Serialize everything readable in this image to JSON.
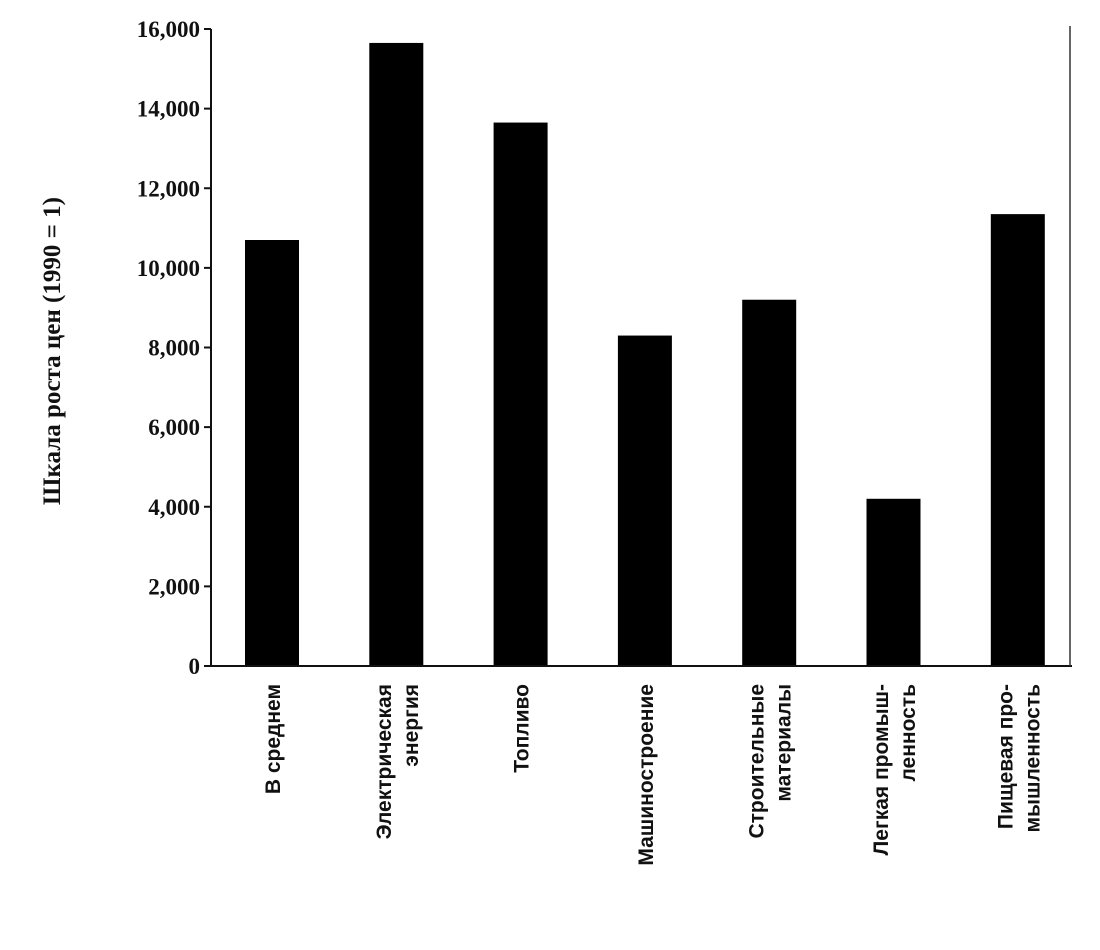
{
  "chart_data": {
    "type": "bar",
    "ylabel": "Шкала роста цен (1990 = 1)",
    "xlabel": "",
    "ylim": [
      0,
      16000
    ],
    "yticks": [
      0,
      2000,
      4000,
      6000,
      8000,
      10000,
      12000,
      14000,
      16000
    ],
    "ytick_labels": [
      "0",
      "2,000",
      "4,000",
      "6,000",
      "8,000",
      "10,000",
      "12,000",
      "14,000",
      "16,000"
    ],
    "categories": [
      {
        "lines": [
          "В среднем"
        ]
      },
      {
        "lines": [
          "Электрическая",
          "энергия"
        ]
      },
      {
        "lines": [
          "Топливо"
        ]
      },
      {
        "lines": [
          "Машиностроение"
        ]
      },
      {
        "lines": [
          "Строительные",
          "материалы"
        ]
      },
      {
        "lines": [
          "Легкая промыш-",
          "ленность"
        ]
      },
      {
        "lines": [
          "Пищевая про-",
          "мышленность"
        ]
      }
    ],
    "values": [
      10700,
      15650,
      13650,
      8300,
      9200,
      4200,
      11350
    ],
    "grid": false,
    "bar_color": "#000000"
  }
}
